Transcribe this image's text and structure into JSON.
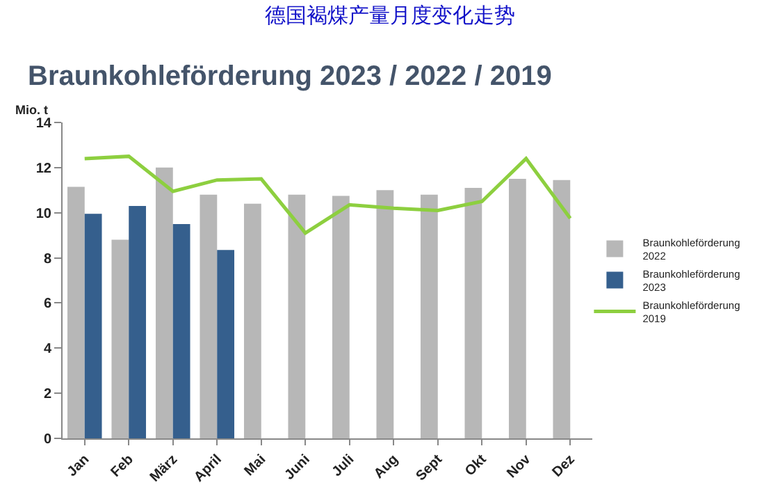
{
  "chart_data": {
    "type": "bar",
    "title": "德国褐煤产量月度变化走势",
    "subtitle": "Braunkohleförderung 2023 / 2022 / 2019",
    "ylabel": "Mio. t",
    "categories": [
      "Jan",
      "Feb",
      "März",
      "April",
      "Mai",
      "Juni",
      "Juli",
      "Aug",
      "Sept",
      "Okt",
      "Nov",
      "Dez"
    ],
    "series": [
      {
        "name": "Braunkohleförderung 2022",
        "color": "#b7b7b7",
        "values": [
          11.15,
          8.8,
          12.0,
          10.8,
          10.4,
          10.8,
          10.75,
          11.0,
          10.8,
          11.1,
          11.5,
          11.45
        ]
      },
      {
        "name": "Braunkohleförderung 2023",
        "color": "#355f8d",
        "values": [
          9.95,
          10.3,
          9.5,
          8.35,
          null,
          null,
          null,
          null,
          null,
          null,
          null,
          null
        ]
      },
      {
        "name": "Braunkohleförderung 2019",
        "color": "#8dcf3f",
        "type": "line",
        "values": [
          12.4,
          12.5,
          10.95,
          11.45,
          11.5,
          9.1,
          10.35,
          10.2,
          10.1,
          10.5,
          12.4,
          9.75
        ]
      }
    ],
    "ylim": [
      0,
      14
    ],
    "yticks": [
      0,
      2,
      4,
      6,
      8,
      10,
      12,
      14
    ],
    "legend": "right",
    "marker": "none"
  }
}
